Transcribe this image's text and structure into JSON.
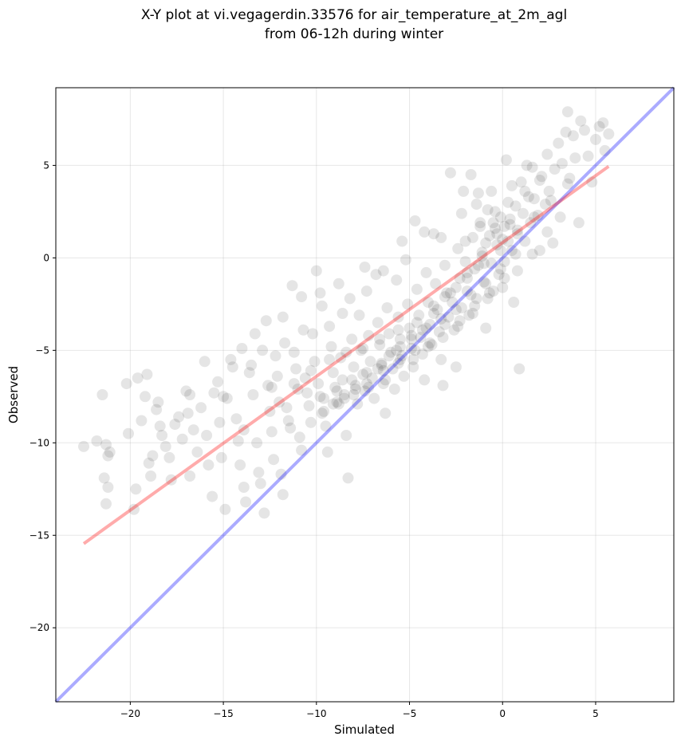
{
  "chart_data": {
    "type": "scatter",
    "title_lines": [
      "X-Y plot at vi.vegagerdin.33576 for air_temperature_at_2m_agl",
      "from 06-12h during winter"
    ],
    "xlabel": "Simulated",
    "ylabel": "Observed",
    "xlim": [
      -24,
      9.2
    ],
    "ylim": [
      -24,
      9.2
    ],
    "xticks": [
      -20,
      -15,
      -10,
      -5,
      0,
      5
    ],
    "yticks": [
      -20,
      -15,
      -10,
      -5,
      0,
      5
    ],
    "grid": true,
    "point_color": "#000000",
    "point_opacity": 0.1,
    "lines": [
      {
        "color": "#0000ff",
        "opacity": 0.33,
        "x": [
          -24,
          9.2
        ],
        "y": [
          -24,
          9.2
        ]
      },
      {
        "color": "#ff0000",
        "opacity": 0.33,
        "x": [
          -22.5,
          5.7
        ],
        "y": [
          -15.45,
          4.95
        ]
      }
    ],
    "points": [
      [
        -22.5,
        -10.2
      ],
      [
        -21.8,
        -9.9
      ],
      [
        -21.5,
        -7.4
      ],
      [
        -21.3,
        -10.1
      ],
      [
        -21.2,
        -10.7
      ],
      [
        -21.1,
        -10.5
      ],
      [
        -21.4,
        -11.9
      ],
      [
        -21.2,
        -12.4
      ],
      [
        -21.3,
        -13.3
      ],
      [
        -20.2,
        -6.8
      ],
      [
        -20.1,
        -9.5
      ],
      [
        -19.8,
        -13.6
      ],
      [
        -19.7,
        -12.5
      ],
      [
        -19.6,
        -6.5
      ],
      [
        -19.4,
        -8.8
      ],
      [
        -19.2,
        -7.5
      ],
      [
        -19.1,
        -6.3
      ],
      [
        -19.0,
        -11.1
      ],
      [
        -18.9,
        -11.8
      ],
      [
        -18.8,
        -10.7
      ],
      [
        -18.6,
        -8.2
      ],
      [
        -18.5,
        -7.8
      ],
      [
        -18.4,
        -9.1
      ],
      [
        -18.3,
        -9.6
      ],
      [
        -18.1,
        -10.2
      ],
      [
        -17.9,
        -10.8
      ],
      [
        -17.8,
        -12.0
      ],
      [
        -17.6,
        -9.0
      ],
      [
        -17.4,
        -8.6
      ],
      [
        -17.2,
        -9.8
      ],
      [
        -17.0,
        -7.2
      ],
      [
        -16.9,
        -8.4
      ],
      [
        -16.8,
        -11.8
      ],
      [
        -16.6,
        -9.3
      ],
      [
        -16.4,
        -10.5
      ],
      [
        -16.2,
        -8.1
      ],
      [
        -16.0,
        -5.6
      ],
      [
        -15.9,
        -9.6
      ],
      [
        -15.8,
        -11.2
      ],
      [
        -15.6,
        -12.9
      ],
      [
        -15.5,
        -7.3
      ],
      [
        -15.3,
        -6.7
      ],
      [
        -15.2,
        -8.9
      ],
      [
        -15.1,
        -10.8
      ],
      [
        -14.9,
        -13.6
      ],
      [
        -14.8,
        -7.6
      ],
      [
        -14.6,
        -5.5
      ],
      [
        -14.5,
        -5.9
      ],
      [
        -14.3,
        -8.7
      ],
      [
        -14.2,
        -9.9
      ],
      [
        -14.1,
        -11.2
      ],
      [
        -13.9,
        -12.4
      ],
      [
        -13.8,
        -13.2
      ],
      [
        -13.6,
        -6.2
      ],
      [
        -13.5,
        -5.8
      ],
      [
        -13.4,
        -7.4
      ],
      [
        -13.2,
        -10.0
      ],
      [
        -13.1,
        -11.6
      ],
      [
        -13.0,
        -12.2
      ],
      [
        -12.8,
        -13.8
      ],
      [
        -12.7,
        -3.4
      ],
      [
        -12.6,
        -6.9
      ],
      [
        -12.5,
        -8.3
      ],
      [
        -12.4,
        -9.4
      ],
      [
        -12.3,
        -10.9
      ],
      [
        -12.2,
        -5.3
      ],
      [
        -12.1,
        -6.4
      ],
      [
        -12.0,
        -7.8
      ],
      [
        -11.9,
        -11.7
      ],
      [
        -11.8,
        -12.8
      ],
      [
        -11.7,
        -4.6
      ],
      [
        -11.6,
        -8.1
      ],
      [
        -11.5,
        -8.8
      ],
      [
        -11.4,
        -9.2
      ],
      [
        -11.3,
        -1.5
      ],
      [
        -11.2,
        -5.1
      ],
      [
        -11.1,
        -6.0
      ],
      [
        -11.0,
        -7.1
      ],
      [
        -10.9,
        -9.7
      ],
      [
        -10.8,
        -10.4
      ],
      [
        -10.7,
        -3.9
      ],
      [
        -10.6,
        -6.5
      ],
      [
        -10.5,
        -7.3
      ],
      [
        -10.4,
        -8.0
      ],
      [
        -10.3,
        -8.9
      ],
      [
        -10.2,
        -4.1
      ],
      [
        -10.1,
        -5.6
      ],
      [
        -10.0,
        -0.7
      ],
      [
        -9.9,
        -6.8
      ],
      [
        -9.8,
        -7.5
      ],
      [
        -9.7,
        -2.6
      ],
      [
        -9.6,
        -8.3
      ],
      [
        -9.5,
        -9.1
      ],
      [
        -9.4,
        -10.5
      ],
      [
        -9.3,
        -3.7
      ],
      [
        -9.2,
        -4.8
      ],
      [
        -9.1,
        -6.2
      ],
      [
        -9.0,
        -7.0
      ],
      [
        -8.9,
        -7.8
      ],
      [
        -8.8,
        -1.4
      ],
      [
        -8.7,
        -5.4
      ],
      [
        -8.6,
        -6.6
      ],
      [
        -8.5,
        -7.4
      ],
      [
        -8.4,
        -9.6
      ],
      [
        -8.3,
        -11.9
      ],
      [
        -8.2,
        -2.2
      ],
      [
        -8.1,
        -4.4
      ],
      [
        -8.0,
        -5.9
      ],
      [
        -7.9,
        -6.9
      ],
      [
        -7.8,
        -7.9
      ],
      [
        -7.7,
        -3.1
      ],
      [
        -7.6,
        -5.0
      ],
      [
        -7.5,
        -6.3
      ],
      [
        -7.4,
        -7.2
      ],
      [
        -7.3,
        -1.8
      ],
      [
        -7.2,
        -4.2
      ],
      [
        -7.1,
        -5.6
      ],
      [
        -7.0,
        -6.5
      ],
      [
        -6.9,
        -7.6
      ],
      [
        -6.8,
        -0.9
      ],
      [
        -6.7,
        -3.5
      ],
      [
        -6.6,
        -4.7
      ],
      [
        -6.5,
        -5.8
      ],
      [
        -6.4,
        -6.8
      ],
      [
        -6.3,
        -8.4
      ],
      [
        -6.2,
        -2.7
      ],
      [
        -6.1,
        -4.1
      ],
      [
        -6.0,
        -5.1
      ],
      [
        -5.9,
        -6.0
      ],
      [
        -5.8,
        -7.1
      ],
      [
        -5.7,
        -1.2
      ],
      [
        -5.6,
        -3.2
      ],
      [
        -5.5,
        -4.4
      ],
      [
        -5.4,
        -5.3
      ],
      [
        -5.3,
        -6.4
      ],
      [
        -5.2,
        -0.1
      ],
      [
        -5.1,
        -2.5
      ],
      [
        -5.0,
        -3.8
      ],
      [
        -4.9,
        -4.9
      ],
      [
        -4.8,
        -5.9
      ],
      [
        -4.7,
        2.0
      ],
      [
        -4.6,
        -1.7
      ],
      [
        -4.5,
        -3.1
      ],
      [
        -4.4,
        -4.3
      ],
      [
        -4.3,
        -5.2
      ],
      [
        -4.2,
        -6.6
      ],
      [
        -4.1,
        -0.8
      ],
      [
        -4.0,
        -2.4
      ],
      [
        -3.9,
        -3.6
      ],
      [
        -3.8,
        -4.7
      ],
      [
        -3.7,
        1.3
      ],
      [
        -3.6,
        -1.4
      ],
      [
        -3.5,
        -2.8
      ],
      [
        -3.4,
        -4.0
      ],
      [
        -3.3,
        -5.5
      ],
      [
        -3.2,
        -6.9
      ],
      [
        -3.1,
        -0.4
      ],
      [
        -3.0,
        -1.9
      ],
      [
        -2.9,
        -3.2
      ],
      [
        -2.8,
        4.6
      ],
      [
        -2.7,
        -2.4
      ],
      [
        -2.6,
        -3.9
      ],
      [
        -2.5,
        -5.9
      ],
      [
        -2.4,
        0.5
      ],
      [
        -2.3,
        -1.1
      ],
      [
        -2.2,
        -2.7
      ],
      [
        -2.1,
        3.6
      ],
      [
        -2.0,
        -0.2
      ],
      [
        -1.9,
        -1.8
      ],
      [
        -1.8,
        -3.1
      ],
      [
        -1.7,
        4.5
      ],
      [
        -1.6,
        1.1
      ],
      [
        -1.5,
        -0.6
      ],
      [
        -1.4,
        -2.2
      ],
      [
        -1.3,
        3.5
      ],
      [
        -1.2,
        1.9
      ],
      [
        -1.1,
        0.3
      ],
      [
        -1.0,
        -1.3
      ],
      [
        -0.9,
        -3.8
      ],
      [
        -0.8,
        2.6
      ],
      [
        -0.7,
        1.2
      ],
      [
        -0.6,
        -0.3
      ],
      [
        -0.5,
        -1.8
      ],
      [
        -0.4,
        1.6
      ],
      [
        -0.3,
        0.7
      ],
      [
        -0.2,
        -0.9
      ],
      [
        -0.1,
        2.2
      ],
      [
        0.0,
        1.0
      ],
      [
        0.1,
        -0.2
      ],
      [
        0.2,
        5.3
      ],
      [
        0.3,
        3.0
      ],
      [
        0.4,
        1.8
      ],
      [
        0.5,
        0.4
      ],
      [
        0.6,
        -2.4
      ],
      [
        0.7,
        2.8
      ],
      [
        0.8,
        1.5
      ],
      [
        0.9,
        -6.0
      ],
      [
        1.0,
        4.1
      ],
      [
        1.1,
        2.4
      ],
      [
        1.2,
        0.9
      ],
      [
        1.4,
        3.3
      ],
      [
        1.5,
        1.9
      ],
      [
        1.6,
        4.9
      ],
      [
        1.7,
        3.2
      ],
      [
        1.9,
        2.3
      ],
      [
        2.0,
        0.4
      ],
      [
        2.1,
        4.4
      ],
      [
        2.3,
        2.9
      ],
      [
        2.4,
        5.6
      ],
      [
        2.5,
        3.6
      ],
      [
        2.7,
        0.8
      ],
      [
        2.8,
        4.8
      ],
      [
        3.0,
        6.2
      ],
      [
        3.1,
        2.2
      ],
      [
        3.2,
        5.1
      ],
      [
        3.4,
        6.8
      ],
      [
        3.5,
        7.9
      ],
      [
        3.6,
        4.3
      ],
      [
        3.8,
        6.6
      ],
      [
        3.9,
        5.4
      ],
      [
        4.1,
        1.9
      ],
      [
        4.2,
        7.4
      ],
      [
        4.4,
        6.9
      ],
      [
        4.6,
        5.5
      ],
      [
        4.8,
        4.1
      ],
      [
        5.0,
        6.4
      ],
      [
        5.2,
        7.1
      ],
      [
        5.4,
        7.3
      ],
      [
        5.5,
        5.8
      ],
      [
        5.7,
        6.7
      ],
      [
        -14.0,
        -4.9
      ],
      [
        -13.3,
        -4.1
      ],
      [
        -12.9,
        -5.0
      ],
      [
        -11.8,
        -3.2
      ],
      [
        -10.8,
        -2.1
      ],
      [
        -9.8,
        -1.9
      ],
      [
        -8.6,
        -3.0
      ],
      [
        -7.4,
        -0.5
      ],
      [
        -6.4,
        -0.7
      ],
      [
        -5.4,
        0.9
      ],
      [
        -4.2,
        1.4
      ],
      [
        -3.3,
        1.1
      ],
      [
        -2.2,
        2.4
      ],
      [
        -1.4,
        2.9
      ],
      [
        -0.6,
        3.6
      ],
      [
        0.5,
        3.9
      ],
      [
        1.3,
        5.0
      ],
      [
        -16.8,
        -7.4
      ],
      [
        -15.0,
        -7.5
      ],
      [
        -13.9,
        -9.3
      ],
      [
        -12.4,
        -7.0
      ],
      [
        -11.2,
        -6.8
      ],
      [
        -10.3,
        -6.1
      ],
      [
        -9.3,
        -5.5
      ],
      [
        -8.4,
        -5.1
      ],
      [
        -7.5,
        -4.9
      ],
      [
        -6.6,
        -4.4
      ],
      [
        -5.6,
        -3.9
      ],
      [
        -4.6,
        -3.5
      ],
      [
        -3.7,
        -2.6
      ],
      [
        -2.8,
        -1.9
      ],
      [
        -1.9,
        -1.1
      ],
      [
        -1.0,
        -0.3
      ],
      [
        -0.1,
        0.4
      ],
      [
        0.8,
        1.3
      ],
      [
        1.7,
        2.2
      ],
      [
        2.6,
        3.1
      ],
      [
        3.5,
        4.0
      ],
      [
        -8.9,
        -7.2
      ],
      [
        -8.1,
        -6.6
      ],
      [
        -7.3,
        -6.2
      ],
      [
        -6.5,
        -5.7
      ],
      [
        -5.7,
        -5.0
      ],
      [
        -4.9,
        -4.4
      ],
      [
        -4.1,
        -3.8
      ],
      [
        -3.3,
        -3.3
      ],
      [
        -2.5,
        -2.8
      ],
      [
        -1.7,
        -2.0
      ],
      [
        -0.9,
        -1.4
      ],
      [
        -0.1,
        -0.6
      ],
      [
        0.7,
        0.2
      ],
      [
        -6.3,
        -6.6
      ],
      [
        -5.5,
        -5.5
      ],
      [
        -4.7,
        -5.0
      ],
      [
        -3.9,
        -4.6
      ],
      [
        -3.1,
        -3.6
      ],
      [
        -2.3,
        -3.4
      ],
      [
        -1.5,
        -2.6
      ],
      [
        -0.7,
        -1.9
      ],
      [
        0.1,
        -1.1
      ],
      [
        -9.6,
        -7.6
      ],
      [
        -8.8,
        -7.9
      ],
      [
        -8.0,
        -7.4
      ],
      [
        -7.2,
        -7.0
      ],
      [
        -6.4,
        -6.1
      ],
      [
        -5.6,
        -5.7
      ],
      [
        -4.8,
        -5.5
      ],
      [
        -4.0,
        -4.8
      ],
      [
        -3.2,
        -4.3
      ],
      [
        -2.4,
        -3.7
      ],
      [
        -1.6,
        -3.0
      ],
      [
        -0.8,
        -2.2
      ],
      [
        0.0,
        -1.6
      ],
      [
        0.8,
        -0.7
      ],
      [
        1.6,
        0.2
      ],
      [
        2.4,
        1.4
      ],
      [
        -2.0,
        0.9
      ],
      [
        -1.2,
        1.7
      ],
      [
        -0.4,
        2.5
      ],
      [
        0.4,
        2.1
      ],
      [
        1.2,
        3.6
      ],
      [
        2.0,
        4.2
      ],
      [
        -0.3,
        1.3
      ],
      [
        -0.9,
        0.8
      ],
      [
        0.3,
        0.9
      ],
      [
        -1.1,
        0.1
      ],
      [
        -0.5,
        1.9
      ],
      [
        0.1,
        1.7
      ],
      [
        -1.3,
        -0.4
      ],
      [
        -1.9,
        -0.8
      ],
      [
        -2.5,
        -1.6
      ],
      [
        -3.1,
        -2.1
      ],
      [
        -3.7,
        -3.0
      ],
      [
        -4.3,
        -3.9
      ],
      [
        -4.9,
        -4.2
      ],
      [
        -5.5,
        -4.8
      ],
      [
        -6.1,
        -5.3
      ],
      [
        -6.7,
        -6.0
      ],
      [
        -7.3,
        -6.8
      ],
      [
        -7.9,
        -7.1
      ],
      [
        -8.5,
        -7.6
      ],
      [
        -9.1,
        -7.9
      ],
      [
        -9.7,
        -8.4
      ]
    ]
  }
}
